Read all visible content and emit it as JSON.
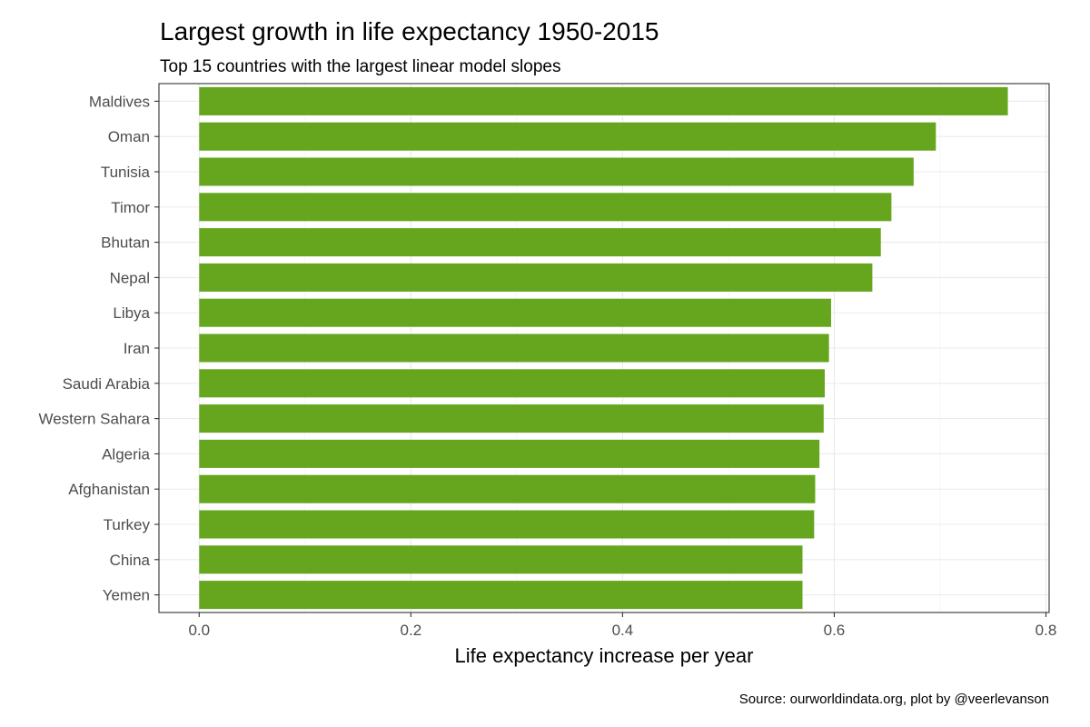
{
  "chart_data": {
    "type": "bar",
    "orientation": "horizontal",
    "title": "Largest growth in life expectancy 1950-2015",
    "subtitle": "Top 15 countries with the largest linear model slopes",
    "xlabel": "Life expectancy increase per year",
    "ylabel": "",
    "caption": "Source: ourworldindata.org, plot by @veerlevanson",
    "categories": [
      "Maldives",
      "Oman",
      "Tunisia",
      "Timor",
      "Bhutan",
      "Nepal",
      "Libya",
      "Iran",
      "Saudi Arabia",
      "Western Sahara",
      "Algeria",
      "Afghanistan",
      "Turkey",
      "China",
      "Yemen"
    ],
    "values": [
      0.764,
      0.696,
      0.675,
      0.654,
      0.644,
      0.636,
      0.597,
      0.595,
      0.591,
      0.59,
      0.586,
      0.582,
      0.581,
      0.57,
      0.57
    ],
    "xlim": [
      -0.038,
      0.803
    ],
    "xticks": [
      0.0,
      0.2,
      0.4,
      0.6,
      0.8
    ],
    "xtick_labels": [
      "0.0",
      "0.2",
      "0.4",
      "0.6",
      "0.8"
    ],
    "grid": true,
    "bar_color": "#66a61e",
    "legend": "none"
  }
}
